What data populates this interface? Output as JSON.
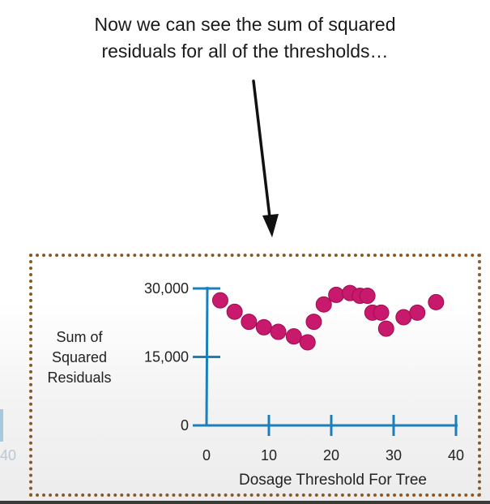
{
  "caption": {
    "line1": "Now we can see the sum of squared",
    "line2": "residuals for all of the thresholds…"
  },
  "colors": {
    "axis": "#1b7fbc",
    "point": "#c8196c",
    "border": "#8a5a26"
  },
  "edge_label": "40",
  "chart_data": {
    "type": "scatter",
    "title": "",
    "xlabel": "Dosage Threshold For Tree",
    "ylabel_lines": [
      "Sum of",
      "Squared",
      "Residuals"
    ],
    "x_ticks": [
      0,
      10,
      20,
      30,
      40
    ],
    "y_ticks": [
      0,
      15000,
      30000
    ],
    "y_tick_labels": [
      "0",
      "15,000",
      "30,000"
    ],
    "xlim": [
      0,
      40
    ],
    "ylim": [
      0,
      30000
    ],
    "grid": false,
    "series": [
      {
        "points": [
          {
            "x": 2.2,
            "y": 27400
          },
          {
            "x": 4.5,
            "y": 24900
          },
          {
            "x": 6.8,
            "y": 22700
          },
          {
            "x": 9.2,
            "y": 21500
          },
          {
            "x": 11.5,
            "y": 20500
          },
          {
            "x": 14.0,
            "y": 19500
          },
          {
            "x": 16.2,
            "y": 18200
          },
          {
            "x": 17.2,
            "y": 22700
          },
          {
            "x": 18.8,
            "y": 26500
          },
          {
            "x": 20.8,
            "y": 28600
          },
          {
            "x": 23.0,
            "y": 29000
          },
          {
            "x": 24.6,
            "y": 28400
          },
          {
            "x": 25.8,
            "y": 28400
          },
          {
            "x": 26.6,
            "y": 24700
          },
          {
            "x": 28.0,
            "y": 24700
          },
          {
            "x": 28.8,
            "y": 21200
          },
          {
            "x": 31.6,
            "y": 23700
          },
          {
            "x": 33.8,
            "y": 24700
          },
          {
            "x": 36.8,
            "y": 27000
          }
        ]
      }
    ]
  }
}
